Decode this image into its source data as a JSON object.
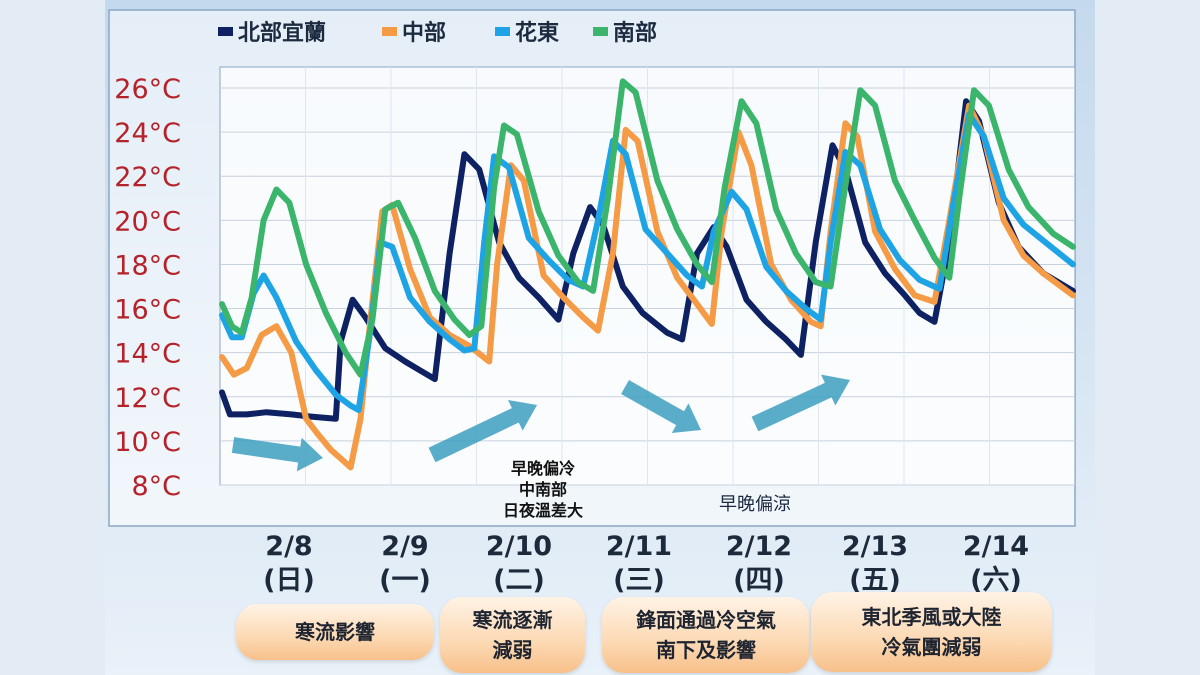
{
  "chart_data": {
    "type": "line",
    "ylim": [
      8,
      26
    ],
    "yticks": [
      "26°C",
      "24°C",
      "22°C",
      "20°C",
      "18°C",
      "16°C",
      "14°C",
      "12°C",
      "10°C",
      "8°C"
    ],
    "ytick_values": [
      26,
      24,
      22,
      20,
      18,
      16,
      14,
      12,
      10,
      8
    ],
    "ytick_color": "#b5222a",
    "grid": true,
    "legend_position": "top",
    "x_points": 8,
    "series": [
      {
        "name": "北部宜蘭",
        "color": "#0e2163",
        "values": [
          [
            0,
            12.2
          ],
          [
            0.08,
            11.2
          ],
          [
            0.25,
            11.2
          ],
          [
            0.45,
            11.3
          ],
          [
            0.7,
            11.2
          ],
          [
            0.9,
            11.1
          ],
          [
            1.15,
            11.0
          ],
          [
            1.2,
            14.5
          ],
          [
            1.32,
            16.4
          ],
          [
            1.45,
            15.6
          ],
          [
            1.65,
            14.2
          ],
          [
            1.85,
            13.6
          ],
          [
            2.0,
            13.2
          ],
          [
            2.15,
            12.8
          ],
          [
            2.3,
            18.5
          ],
          [
            2.45,
            23.0
          ],
          [
            2.6,
            22.3
          ],
          [
            2.8,
            19.0
          ],
          [
            3.0,
            17.4
          ],
          [
            3.2,
            16.5
          ],
          [
            3.4,
            15.5
          ],
          [
            3.55,
            18.5
          ],
          [
            3.72,
            20.6
          ],
          [
            3.85,
            19.8
          ],
          [
            4.05,
            17.0
          ],
          [
            4.25,
            15.8
          ],
          [
            4.5,
            14.9
          ],
          [
            4.65,
            14.6
          ],
          [
            4.8,
            18.5
          ],
          [
            4.97,
            19.7
          ],
          [
            5.1,
            18.8
          ],
          [
            5.3,
            16.4
          ],
          [
            5.5,
            15.4
          ],
          [
            5.7,
            14.6
          ],
          [
            5.85,
            13.9
          ],
          [
            6.0,
            19.0
          ],
          [
            6.17,
            23.4
          ],
          [
            6.3,
            22.3
          ],
          [
            6.5,
            19.0
          ],
          [
            6.7,
            17.6
          ],
          [
            6.9,
            16.6
          ],
          [
            7.05,
            15.8
          ],
          [
            7.2,
            15.4
          ],
          [
            7.35,
            19.0
          ],
          [
            7.52,
            25.4
          ],
          [
            7.65,
            24.5
          ],
          [
            7.85,
            20.8
          ],
          [
            8.05,
            18.8
          ],
          [
            8.3,
            17.6
          ],
          [
            8.6,
            16.8
          ]
        ]
      },
      {
        "name": "中部",
        "color": "#f59a45",
        "values": [
          [
            0,
            13.8
          ],
          [
            0.12,
            13.0
          ],
          [
            0.25,
            13.3
          ],
          [
            0.4,
            14.8
          ],
          [
            0.55,
            15.2
          ],
          [
            0.7,
            14.0
          ],
          [
            0.85,
            11.0
          ],
          [
            0.97,
            10.3
          ],
          [
            1.1,
            9.6
          ],
          [
            1.25,
            9.0
          ],
          [
            1.3,
            8.8
          ],
          [
            1.4,
            11.0
          ],
          [
            1.5,
            15.5
          ],
          [
            1.62,
            20.4
          ],
          [
            1.72,
            20.7
          ],
          [
            1.9,
            17.8
          ],
          [
            2.1,
            15.6
          ],
          [
            2.3,
            14.8
          ],
          [
            2.5,
            14.3
          ],
          [
            2.7,
            13.6
          ],
          [
            2.78,
            18.0
          ],
          [
            2.92,
            22.5
          ],
          [
            3.05,
            21.8
          ],
          [
            3.25,
            17.5
          ],
          [
            3.45,
            16.5
          ],
          [
            3.65,
            15.6
          ],
          [
            3.8,
            15.0
          ],
          [
            3.95,
            18.5
          ],
          [
            4.08,
            24.1
          ],
          [
            4.2,
            23.6
          ],
          [
            4.4,
            19.5
          ],
          [
            4.6,
            17.4
          ],
          [
            4.8,
            16.2
          ],
          [
            4.95,
            15.3
          ],
          [
            5.05,
            19.5
          ],
          [
            5.22,
            24.0
          ],
          [
            5.35,
            22.5
          ],
          [
            5.55,
            18.0
          ],
          [
            5.75,
            16.4
          ],
          [
            5.95,
            15.4
          ],
          [
            6.05,
            15.2
          ],
          [
            6.15,
            19.5
          ],
          [
            6.3,
            24.4
          ],
          [
            6.42,
            23.8
          ],
          [
            6.6,
            19.5
          ],
          [
            6.8,
            17.8
          ],
          [
            7.0,
            16.6
          ],
          [
            7.2,
            16.3
          ],
          [
            7.35,
            20.0
          ],
          [
            7.55,
            25.2
          ],
          [
            7.7,
            23.8
          ],
          [
            7.9,
            20.0
          ],
          [
            8.1,
            18.4
          ],
          [
            8.3,
            17.6
          ],
          [
            8.6,
            16.6
          ]
        ]
      },
      {
        "name": "花東",
        "color": "#1ea3e5",
        "values": [
          [
            0,
            15.7
          ],
          [
            0.1,
            14.7
          ],
          [
            0.2,
            14.7
          ],
          [
            0.32,
            16.7
          ],
          [
            0.42,
            17.5
          ],
          [
            0.55,
            16.5
          ],
          [
            0.75,
            14.5
          ],
          [
            0.95,
            13.2
          ],
          [
            1.15,
            12.1
          ],
          [
            1.3,
            11.6
          ],
          [
            1.38,
            11.4
          ],
          [
            1.5,
            15.0
          ],
          [
            1.6,
            19.0
          ],
          [
            1.72,
            18.8
          ],
          [
            1.9,
            16.5
          ],
          [
            2.1,
            15.4
          ],
          [
            2.3,
            14.6
          ],
          [
            2.45,
            14.1
          ],
          [
            2.55,
            14.2
          ],
          [
            2.65,
            19.0
          ],
          [
            2.75,
            22.9
          ],
          [
            2.9,
            22.4
          ],
          [
            3.1,
            19.2
          ],
          [
            3.3,
            18.2
          ],
          [
            3.5,
            17.3
          ],
          [
            3.65,
            17.0
          ],
          [
            3.8,
            20.0
          ],
          [
            3.95,
            23.6
          ],
          [
            4.08,
            23.0
          ],
          [
            4.28,
            19.6
          ],
          [
            4.5,
            18.5
          ],
          [
            4.7,
            17.5
          ],
          [
            4.85,
            17.0
          ],
          [
            4.97,
            19.5
          ],
          [
            5.15,
            21.3
          ],
          [
            5.3,
            20.5
          ],
          [
            5.5,
            17.9
          ],
          [
            5.7,
            16.8
          ],
          [
            5.9,
            16.0
          ],
          [
            6.05,
            15.5
          ],
          [
            6.15,
            19.0
          ],
          [
            6.3,
            23.1
          ],
          [
            6.45,
            22.5
          ],
          [
            6.65,
            19.6
          ],
          [
            6.85,
            18.2
          ],
          [
            7.05,
            17.3
          ],
          [
            7.25,
            16.9
          ],
          [
            7.4,
            21.0
          ],
          [
            7.55,
            24.8
          ],
          [
            7.7,
            23.8
          ],
          [
            7.9,
            21.0
          ],
          [
            8.1,
            19.8
          ],
          [
            8.35,
            18.9
          ],
          [
            8.6,
            18.0
          ]
        ]
      },
      {
        "name": "南部",
        "color": "#3bb56b",
        "values": [
          [
            0,
            16.2
          ],
          [
            0.1,
            15.2
          ],
          [
            0.2,
            14.9
          ],
          [
            0.3,
            16.5
          ],
          [
            0.42,
            20.0
          ],
          [
            0.55,
            21.4
          ],
          [
            0.68,
            20.8
          ],
          [
            0.85,
            18.0
          ],
          [
            1.05,
            15.8
          ],
          [
            1.25,
            14.0
          ],
          [
            1.4,
            13.0
          ],
          [
            1.52,
            15.5
          ],
          [
            1.65,
            20.5
          ],
          [
            1.78,
            20.8
          ],
          [
            1.95,
            19.2
          ],
          [
            2.15,
            16.8
          ],
          [
            2.35,
            15.5
          ],
          [
            2.5,
            14.8
          ],
          [
            2.62,
            15.2
          ],
          [
            2.75,
            21.5
          ],
          [
            2.85,
            24.3
          ],
          [
            2.98,
            23.9
          ],
          [
            3.2,
            20.4
          ],
          [
            3.4,
            18.4
          ],
          [
            3.6,
            17.2
          ],
          [
            3.75,
            16.8
          ],
          [
            3.9,
            21.0
          ],
          [
            4.05,
            26.3
          ],
          [
            4.18,
            25.8
          ],
          [
            4.4,
            21.8
          ],
          [
            4.6,
            19.6
          ],
          [
            4.8,
            18.0
          ],
          [
            4.95,
            17.2
          ],
          [
            5.08,
            21.5
          ],
          [
            5.25,
            25.4
          ],
          [
            5.4,
            24.4
          ],
          [
            5.6,
            20.5
          ],
          [
            5.8,
            18.5
          ],
          [
            6.0,
            17.2
          ],
          [
            6.15,
            17.0
          ],
          [
            6.28,
            21.0
          ],
          [
            6.45,
            25.9
          ],
          [
            6.6,
            25.2
          ],
          [
            6.8,
            21.8
          ],
          [
            7.0,
            20.0
          ],
          [
            7.2,
            18.3
          ],
          [
            7.35,
            17.4
          ],
          [
            7.45,
            21.0
          ],
          [
            7.6,
            25.9
          ],
          [
            7.75,
            25.2
          ],
          [
            7.95,
            22.3
          ],
          [
            8.15,
            20.6
          ],
          [
            8.4,
            19.4
          ],
          [
            8.6,
            18.8
          ]
        ]
      }
    ],
    "x_dates": [
      {
        "date": "2/8",
        "day": "(日)",
        "red": true
      },
      {
        "date": "2/9",
        "day": "(一)",
        "red": false
      },
      {
        "date": "2/10",
        "day": "(二)",
        "red": false
      },
      {
        "date": "2/11",
        "day": "(三)",
        "red": false
      },
      {
        "date": "2/12",
        "day": "(四)",
        "red": false
      },
      {
        "date": "2/13",
        "day": "(五)",
        "red": false
      },
      {
        "date": "2/14",
        "day": "(六)",
        "red": true
      }
    ],
    "annotations": {
      "center": "早晚偏冷\n中南部\n日夜溫差大",
      "right": "早晚偏涼"
    }
  },
  "phases": [
    {
      "text": "寒流影響"
    },
    {
      "text": "寒流逐漸\n減弱"
    },
    {
      "text": "鋒面通過冷空氣\n南下及影響"
    },
    {
      "text": "東北季風或大陸\n冷氣團減弱"
    }
  ],
  "colors": {
    "arrow": "#3c9fbf",
    "grid": "#c7d2de"
  }
}
